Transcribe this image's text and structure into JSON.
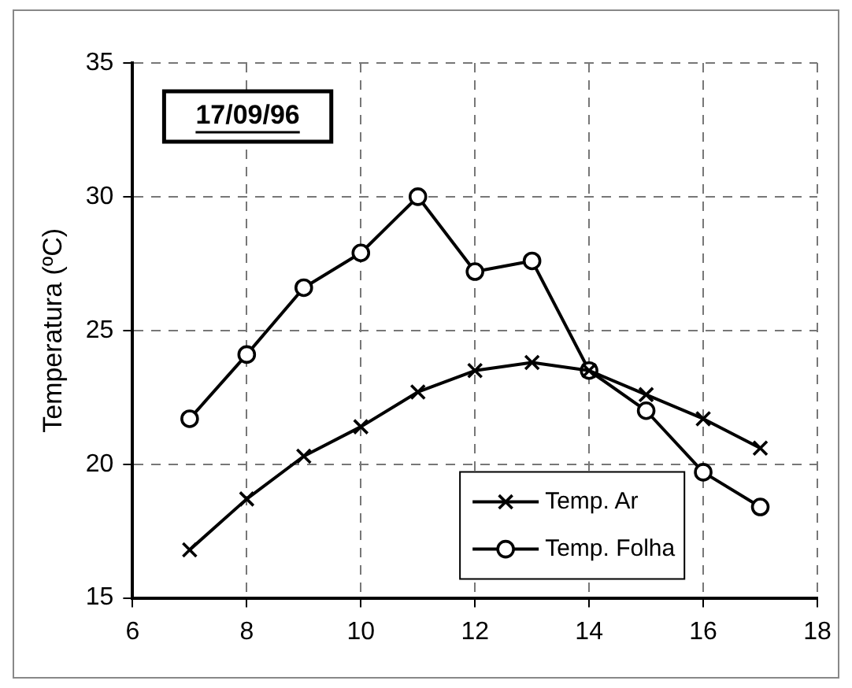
{
  "chart_data": {
    "type": "line",
    "ylabel": "Temperatura (ºC)",
    "annotations": [
      "17/09/96"
    ],
    "x": [
      7,
      8,
      9,
      10,
      11,
      12,
      13,
      14,
      15,
      16,
      17
    ],
    "xlim": [
      6,
      18
    ],
    "xticks": [
      6,
      8,
      10,
      12,
      14,
      16,
      18
    ],
    "ylim": [
      15,
      35
    ],
    "yticks": [
      15,
      20,
      25,
      30,
      35
    ],
    "grid": true,
    "legend": "bottom",
    "line_style": "solid",
    "series": [
      {
        "name": "Temp. Ar",
        "color": "#000000",
        "marker": "cross",
        "values": [
          16.8,
          18.7,
          20.3,
          21.4,
          22.7,
          23.5,
          23.8,
          23.5,
          22.6,
          21.7,
          20.6
        ]
      },
      {
        "name": "Temp. Folha",
        "color": "#000000",
        "marker": "circle",
        "values": [
          21.7,
          24.1,
          26.6,
          27.9,
          30.0,
          27.2,
          27.6,
          23.5,
          22.0,
          19.7,
          18.4
        ]
      }
    ]
  }
}
